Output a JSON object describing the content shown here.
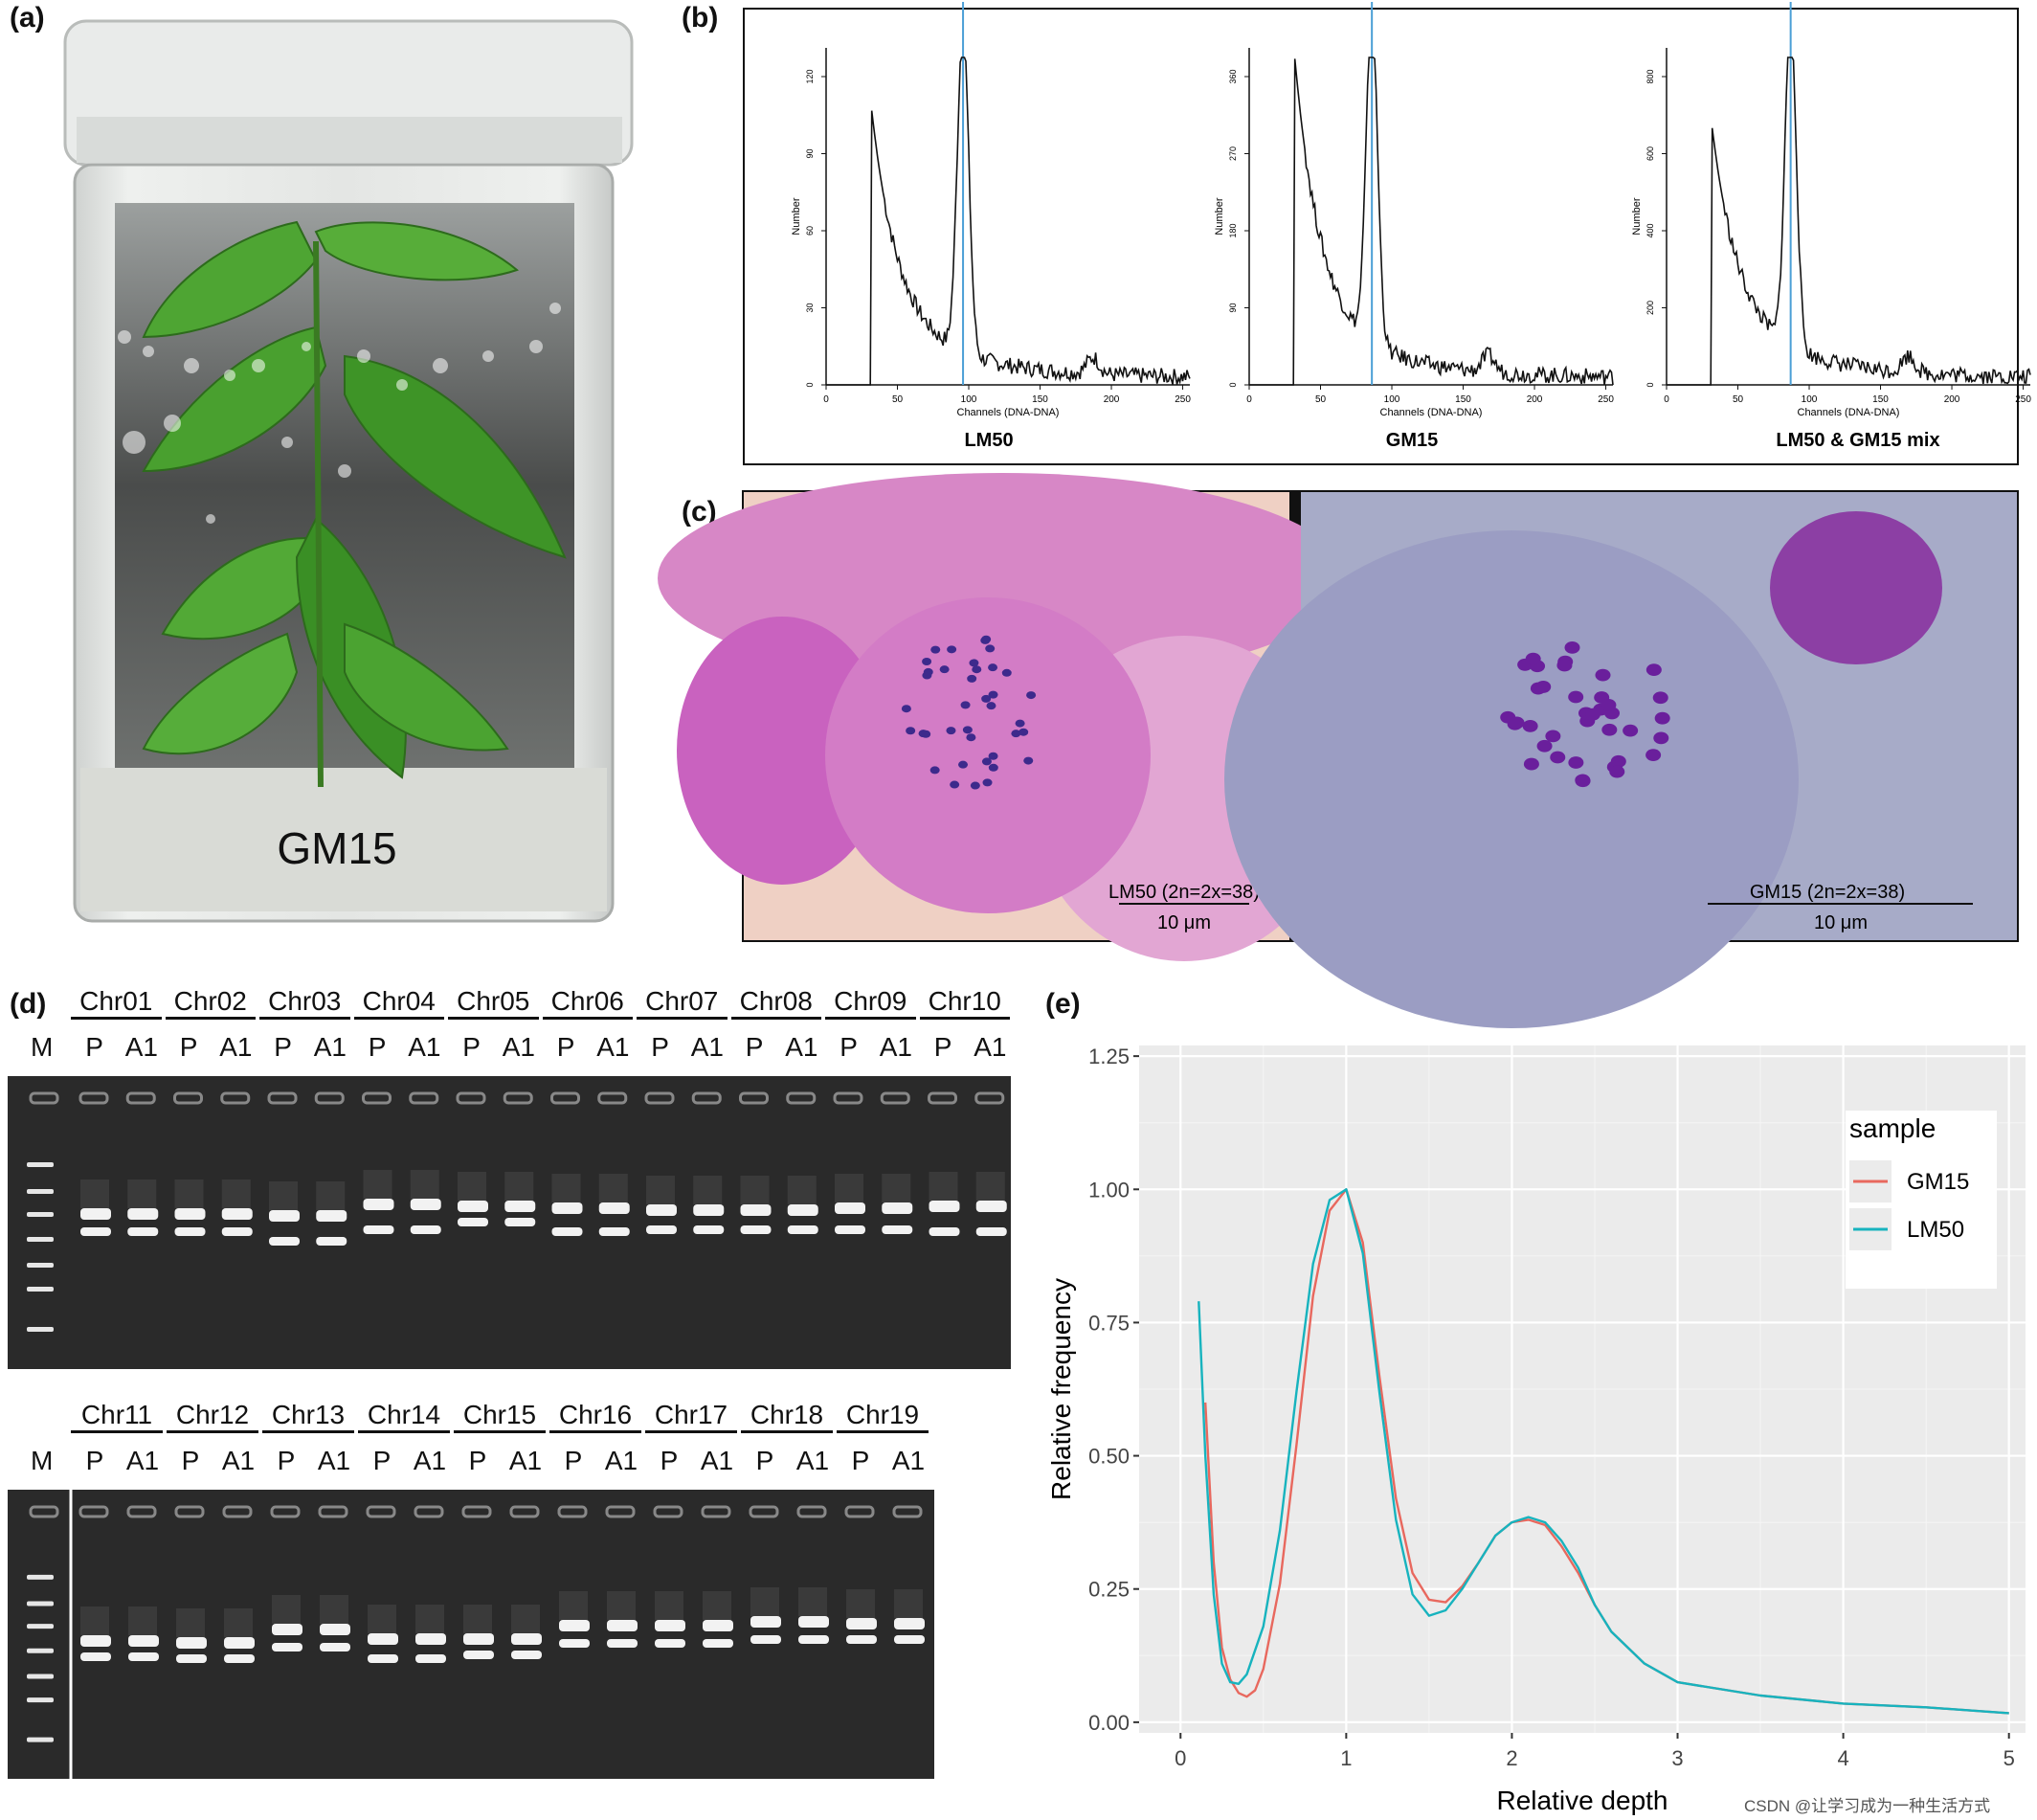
{
  "panels": {
    "a": {
      "label": "(a)",
      "plate_text": "GM15"
    },
    "b": {
      "label": "(b)",
      "histograms": [
        {
          "caption": "LM50",
          "y_title": "Number",
          "x_title": "Channels (DNA-DNA)",
          "y_ticks": [
            "0",
            "30",
            "60",
            "90",
            "120"
          ],
          "x_ticks": [
            "0",
            "50",
            "100",
            "150",
            "200",
            "250"
          ]
        },
        {
          "caption": "GM15",
          "y_title": "Number",
          "x_title": "Channels (DNA-DNA)",
          "y_ticks": [
            "0",
            "90",
            "180",
            "270",
            "360"
          ],
          "x_ticks": [
            "0",
            "50",
            "100",
            "150",
            "200",
            "250"
          ]
        },
        {
          "caption": "LM50 & GM15 mix",
          "y_title": "Number",
          "x_title": "Channels (DNA-DNA)",
          "y_ticks": [
            "0",
            "200",
            "400",
            "600",
            "800"
          ],
          "x_ticks": [
            "0",
            "50",
            "100",
            "150",
            "200",
            "250"
          ]
        }
      ]
    },
    "c": {
      "label": "(c)",
      "left": {
        "title": "LM50 (2n=2x=38)",
        "scale": "10 μm"
      },
      "right": {
        "title": "GM15 (2n=2x=38)",
        "scale": "10 μm"
      }
    },
    "d": {
      "label": "(d)",
      "marker": "M",
      "lane_p": "P",
      "lane_a1": "A1",
      "top_chromosomes": [
        "Chr01",
        "Chr02",
        "Chr03",
        "Chr04",
        "Chr05",
        "Chr06",
        "Chr07",
        "Chr08",
        "Chr09",
        "Chr10"
      ],
      "bottom_chromosomes": [
        "Chr11",
        "Chr12",
        "Chr13",
        "Chr14",
        "Chr15",
        "Chr16",
        "Chr17",
        "Chr18",
        "Chr19"
      ]
    },
    "e": {
      "label": "(e)"
    }
  },
  "chart_data": {
    "type": "line",
    "title": "",
    "xlabel": "Relative depth",
    "ylabel": "Relative frequency",
    "xlim": [
      -0.25,
      5.1
    ],
    "ylim": [
      -0.02,
      1.27
    ],
    "x_ticks": [
      "0",
      "1",
      "2",
      "3",
      "4",
      "5"
    ],
    "y_ticks": [
      "0.00",
      "0.25",
      "0.50",
      "0.75",
      "1.00",
      "1.25"
    ],
    "grid": true,
    "legend": {
      "title": "sample",
      "position": "right"
    },
    "series": [
      {
        "name": "GM15",
        "color": "#e8685e",
        "x": [
          0.15,
          0.2,
          0.25,
          0.3,
          0.35,
          0.4,
          0.45,
          0.5,
          0.6,
          0.7,
          0.8,
          0.9,
          1.0,
          1.1,
          1.2,
          1.3,
          1.4,
          1.5,
          1.6,
          1.7,
          1.8,
          1.9,
          2.0,
          2.1,
          2.2,
          2.3,
          2.4,
          2.5,
          2.6,
          2.8,
          3.0,
          3.5,
          4.0,
          4.5,
          5.0
        ],
        "y": [
          0.6,
          0.3,
          0.14,
          0.08,
          0.055,
          0.048,
          0.06,
          0.1,
          0.26,
          0.52,
          0.8,
          0.96,
          1.0,
          0.9,
          0.65,
          0.42,
          0.28,
          0.23,
          0.225,
          0.255,
          0.3,
          0.35,
          0.375,
          0.38,
          0.37,
          0.33,
          0.28,
          0.22,
          0.17,
          0.11,
          0.075,
          0.05,
          0.035,
          0.028,
          0.017
        ]
      },
      {
        "name": "LM50",
        "color": "#17b3be",
        "x": [
          0.11,
          0.15,
          0.2,
          0.25,
          0.3,
          0.35,
          0.4,
          0.5,
          0.6,
          0.7,
          0.8,
          0.9,
          1.0,
          1.1,
          1.2,
          1.3,
          1.4,
          1.5,
          1.6,
          1.7,
          1.8,
          1.9,
          2.0,
          2.1,
          2.2,
          2.3,
          2.4,
          2.5,
          2.6,
          2.8,
          3.0,
          3.5,
          4.0,
          4.5,
          5.0
        ],
        "y": [
          0.79,
          0.5,
          0.24,
          0.11,
          0.075,
          0.072,
          0.09,
          0.18,
          0.36,
          0.62,
          0.86,
          0.98,
          1.0,
          0.88,
          0.62,
          0.38,
          0.24,
          0.2,
          0.21,
          0.25,
          0.3,
          0.35,
          0.375,
          0.385,
          0.375,
          0.34,
          0.29,
          0.22,
          0.17,
          0.11,
          0.075,
          0.05,
          0.035,
          0.028,
          0.017
        ]
      }
    ]
  },
  "watermark": "CSDN @让学习成为一种生活方式"
}
